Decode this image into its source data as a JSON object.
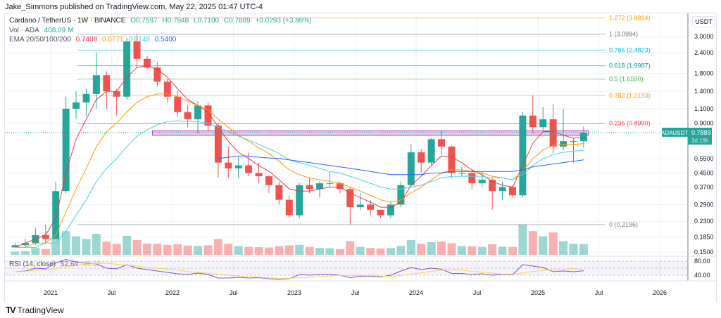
{
  "header": {
    "published": "Jake_Simmons published on TradingView.com, May 22, 2025 01:47 UTC-4"
  },
  "legend": {
    "symbol": "Cardano / TetherUS · 1W · BINANCE",
    "open": "O0.7597",
    "high": "H0.7948",
    "low": "L0.7100",
    "close": "C0.7889",
    "change": "+0.0293 (+3.86%)",
    "vol_label": "Vol · ADA",
    "vol_value": "408.09 M",
    "ema_label": "EMA 20/50/100/200",
    "ema_values": [
      "0.7408",
      "0.6771",
      "0.6148",
      "0.5400"
    ],
    "rsi_label": "RSI (14, close)",
    "rsi_values": [
      "52.64",
      "49.92"
    ]
  },
  "colors": {
    "up": "#26a69a",
    "down": "#ef5350",
    "ema20": "#f23645",
    "ema50": "#ff9800",
    "ema100": "#4dd0e1",
    "ema200": "#2962ff",
    "rsi": "#7e57c2",
    "rsi_ma": "#f5d94a",
    "zone": "#ce93d8",
    "price_tag": "#26a69a"
  },
  "fib_levels": [
    {
      "ratio": "1.272",
      "price": 3.8814,
      "label": "1.272 (3.8814)",
      "color": "#ff9800"
    },
    {
      "ratio": "1",
      "price": 3.0984,
      "label": "1 (3.0984)",
      "color": "#787b86"
    },
    {
      "ratio": "0.786",
      "price": 2.4823,
      "label": "0.786 (2.4823)",
      "color": "#00bcd4"
    },
    {
      "ratio": "0.618",
      "price": 1.9987,
      "label": "0.618 (1.9987)",
      "color": "#089981"
    },
    {
      "ratio": "0.5",
      "price": 1.659,
      "label": "0.5 (1.6590)",
      "color": "#4caf50"
    },
    {
      "ratio": "0.382",
      "price": 1.3193,
      "label": "0.382 (1.3193)",
      "color": "#ff9800"
    },
    {
      "ratio": "0.236",
      "price": 0.899,
      "label": "0.236 (0.8990)",
      "color": "#f23645"
    },
    {
      "ratio": "0",
      "price": 0.2196,
      "label": "0 (0.2196)",
      "color": "#787b86"
    }
  ],
  "price_axis": {
    "unit": "USDT",
    "ticks": [
      "3.0000",
      "2.4000",
      "1.8000",
      "1.4000",
      "1.1000",
      "0.9000",
      "0.5500",
      "0.4500",
      "0.3700",
      "0.2900",
      "0.2300",
      "0.1850",
      "0.1500"
    ],
    "current_symbol": "ADAUSDT",
    "current_price": "0.7889",
    "countdown": "3d 19h"
  },
  "rsi_axis": {
    "ticks": [
      "80.00",
      "40.00"
    ]
  },
  "chart_data": {
    "type": "candlestick",
    "title": "Cardano / TetherUS · 1W · BINANCE",
    "yscale": "log",
    "ylim": [
      0.15,
      3.3
    ],
    "grid": true,
    "x_ticks": [
      "2021",
      "Jul",
      "2022",
      "Jul",
      "2023",
      "Jul",
      "2024",
      "Jul",
      "2025",
      "Jul",
      "2026"
    ],
    "start_month": "2020-09",
    "ohlc": [
      [
        0.16,
        0.17,
        0.16,
        0.165
      ],
      [
        0.165,
        0.18,
        0.16,
        0.17
      ],
      [
        0.17,
        0.21,
        0.165,
        0.19
      ],
      [
        0.19,
        0.22,
        0.17,
        0.18
      ],
      [
        0.18,
        0.4,
        0.18,
        0.35
      ],
      [
        0.35,
        1.3,
        0.34,
        1.1
      ],
      [
        1.1,
        1.4,
        0.95,
        1.2
      ],
      [
        1.2,
        1.45,
        1.0,
        1.35
      ],
      [
        1.35,
        2.4,
        1.1,
        1.75
      ],
      [
        1.75,
        1.85,
        1.1,
        1.4
      ],
      [
        1.4,
        1.45,
        1.0,
        1.3
      ],
      [
        1.3,
        2.95,
        1.25,
        2.8
      ],
      [
        2.8,
        3.1,
        1.95,
        2.2
      ],
      [
        2.2,
        2.3,
        1.9,
        1.95
      ],
      [
        1.95,
        2.1,
        1.5,
        1.6
      ],
      [
        1.6,
        1.65,
        1.2,
        1.3
      ],
      [
        1.3,
        1.4,
        0.98,
        1.05
      ],
      [
        1.05,
        1.15,
        0.85,
        0.95
      ],
      [
        0.95,
        1.22,
        0.78,
        1.15
      ],
      [
        1.15,
        1.2,
        0.8,
        0.87
      ],
      [
        0.87,
        0.9,
        0.42,
        0.52
      ],
      [
        0.52,
        0.65,
        0.42,
        0.48
      ],
      [
        0.48,
        0.56,
        0.42,
        0.5
      ],
      [
        0.5,
        0.6,
        0.43,
        0.45
      ],
      [
        0.45,
        0.52,
        0.39,
        0.43
      ],
      [
        0.43,
        0.44,
        0.34,
        0.38
      ],
      [
        0.38,
        0.4,
        0.29,
        0.31
      ],
      [
        0.31,
        0.33,
        0.24,
        0.25
      ],
      [
        0.25,
        0.39,
        0.24,
        0.38
      ],
      [
        0.38,
        0.42,
        0.34,
        0.36
      ],
      [
        0.36,
        0.4,
        0.32,
        0.39
      ],
      [
        0.39,
        0.46,
        0.37,
        0.39
      ],
      [
        0.39,
        0.4,
        0.34,
        0.36
      ],
      [
        0.36,
        0.37,
        0.22,
        0.28
      ],
      [
        0.28,
        0.34,
        0.27,
        0.29
      ],
      [
        0.29,
        0.31,
        0.25,
        0.27
      ],
      [
        0.27,
        0.27,
        0.24,
        0.25
      ],
      [
        0.25,
        0.3,
        0.24,
        0.29
      ],
      [
        0.29,
        0.4,
        0.28,
        0.38
      ],
      [
        0.38,
        0.67,
        0.37,
        0.6
      ],
      [
        0.6,
        0.63,
        0.45,
        0.52
      ],
      [
        0.52,
        0.73,
        0.5,
        0.72
      ],
      [
        0.72,
        0.81,
        0.58,
        0.65
      ],
      [
        0.65,
        0.66,
        0.42,
        0.45
      ],
      [
        0.45,
        0.49,
        0.43,
        0.45
      ],
      [
        0.45,
        0.47,
        0.36,
        0.39
      ],
      [
        0.39,
        0.46,
        0.37,
        0.41
      ],
      [
        0.41,
        0.42,
        0.27,
        0.35
      ],
      [
        0.35,
        0.4,
        0.31,
        0.37
      ],
      [
        0.37,
        0.38,
        0.32,
        0.33
      ],
      [
        0.33,
        1.05,
        0.32,
        1.0
      ],
      [
        1.0,
        1.33,
        0.78,
        0.85
      ],
      [
        0.85,
        1.12,
        0.82,
        0.95
      ],
      [
        0.95,
        1.17,
        0.59,
        0.65
      ],
      [
        0.65,
        1.1,
        0.62,
        0.7
      ],
      [
        0.7,
        0.73,
        0.52,
        0.7
      ],
      [
        0.7,
        0.8555,
        0.64,
        0.7889
      ]
    ],
    "volume_m": [
      120,
      140,
      260,
      220,
      650,
      900,
      700,
      600,
      800,
      500,
      420,
      720,
      560,
      430,
      420,
      380,
      400,
      350,
      330,
      360,
      600,
      420,
      330,
      300,
      290,
      280,
      330,
      360,
      380,
      300,
      260,
      250,
      220,
      520,
      300,
      260,
      240,
      260,
      340,
      560,
      420,
      480,
      500,
      440,
      330,
      320,
      300,
      400,
      310,
      300,
      1150,
      900,
      700,
      850,
      520,
      420,
      408.09
    ],
    "ema20": [
      0.16,
      0.17,
      0.18,
      0.19,
      0.24,
      0.45,
      0.72,
      0.95,
      1.25,
      1.4,
      1.4,
      1.7,
      1.95,
      2.0,
      1.9,
      1.7,
      1.45,
      1.25,
      1.15,
      1.05,
      0.85,
      0.7,
      0.6,
      0.55,
      0.5,
      0.46,
      0.41,
      0.36,
      0.35,
      0.35,
      0.36,
      0.37,
      0.37,
      0.34,
      0.32,
      0.3,
      0.28,
      0.28,
      0.3,
      0.38,
      0.43,
      0.5,
      0.57,
      0.56,
      0.52,
      0.47,
      0.44,
      0.4,
      0.38,
      0.37,
      0.5,
      0.68,
      0.8,
      0.8,
      0.76,
      0.73,
      0.7408
    ],
    "ema50": [
      0.16,
      0.16,
      0.17,
      0.17,
      0.19,
      0.26,
      0.36,
      0.48,
      0.65,
      0.8,
      0.9,
      1.05,
      1.2,
      1.3,
      1.35,
      1.35,
      1.3,
      1.22,
      1.15,
      1.08,
      0.95,
      0.85,
      0.76,
      0.7,
      0.64,
      0.59,
      0.53,
      0.47,
      0.44,
      0.42,
      0.41,
      0.4,
      0.39,
      0.37,
      0.35,
      0.33,
      0.31,
      0.3,
      0.31,
      0.34,
      0.37,
      0.41,
      0.45,
      0.47,
      0.47,
      0.46,
      0.45,
      0.43,
      0.42,
      0.41,
      0.46,
      0.55,
      0.62,
      0.66,
      0.67,
      0.67,
      0.6771
    ],
    "ema100": [
      0.16,
      0.16,
      0.16,
      0.17,
      0.17,
      0.2,
      0.25,
      0.31,
      0.4,
      0.48,
      0.55,
      0.65,
      0.75,
      0.82,
      0.88,
      0.92,
      0.93,
      0.92,
      0.92,
      0.9,
      0.85,
      0.8,
      0.75,
      0.71,
      0.67,
      0.63,
      0.59,
      0.54,
      0.52,
      0.5,
      0.48,
      0.46,
      0.45,
      0.43,
      0.41,
      0.39,
      0.37,
      0.36,
      0.36,
      0.37,
      0.38,
      0.4,
      0.42,
      0.43,
      0.43,
      0.43,
      0.43,
      0.42,
      0.42,
      0.41,
      0.44,
      0.5,
      0.55,
      0.58,
      0.6,
      0.61,
      0.6148
    ],
    "ema200": [
      null,
      null,
      null,
      null,
      null,
      null,
      null,
      null,
      null,
      null,
      null,
      null,
      null,
      null,
      null,
      null,
      null,
      null,
      null,
      null,
      0.55,
      0.56,
      0.57,
      0.57,
      0.56,
      0.555,
      0.55,
      0.54,
      0.53,
      0.52,
      0.51,
      0.5,
      0.49,
      0.48,
      0.47,
      0.46,
      0.45,
      0.44,
      0.44,
      0.44,
      0.44,
      0.45,
      0.45,
      0.46,
      0.46,
      0.46,
      0.46,
      0.46,
      0.46,
      0.46,
      0.47,
      0.49,
      0.5,
      0.51,
      0.52,
      0.53,
      0.54
    ],
    "rsi": [
      50,
      52,
      60,
      58,
      75,
      85,
      78,
      74,
      72,
      60,
      58,
      70,
      60,
      56,
      52,
      48,
      44,
      42,
      46,
      42,
      32,
      32,
      34,
      32,
      33,
      30,
      28,
      30,
      42,
      40,
      42,
      42,
      40,
      33,
      37,
      36,
      35,
      40,
      52,
      62,
      56,
      60,
      57,
      45,
      45,
      42,
      44,
      40,
      42,
      41,
      70,
      66,
      62,
      50,
      52,
      50,
      52.64
    ],
    "zone": {
      "from": "2021-11",
      "to": "2025-05",
      "low": 0.76,
      "high": 0.81
    }
  }
}
